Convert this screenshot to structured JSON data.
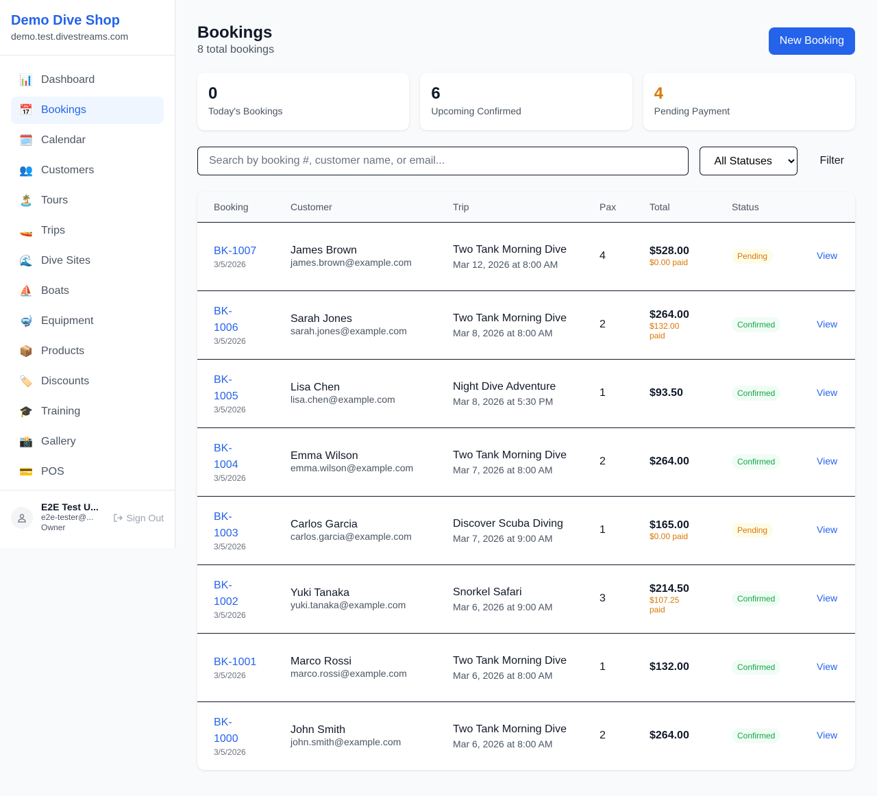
{
  "sidebar": {
    "shop_name": "Demo Dive Shop",
    "domain": "demo.test.divestreams.com",
    "items": [
      {
        "label": "Dashboard",
        "icon": "📊",
        "name": "bar-chart-icon"
      },
      {
        "label": "Bookings",
        "icon": "📅",
        "name": "calendar-icon",
        "active": true
      },
      {
        "label": "Calendar",
        "icon": "🗓️",
        "name": "spiral-calendar-icon"
      },
      {
        "label": "Customers",
        "icon": "👥",
        "name": "users-icon"
      },
      {
        "label": "Tours",
        "icon": "🏝️",
        "name": "island-icon"
      },
      {
        "label": "Trips",
        "icon": "🚤",
        "name": "boat-icon"
      },
      {
        "label": "Dive Sites",
        "icon": "🌊",
        "name": "wave-icon"
      },
      {
        "label": "Boats",
        "icon": "⛵",
        "name": "sailboat-icon"
      },
      {
        "label": "Equipment",
        "icon": "🤿",
        "name": "diving-mask-icon"
      },
      {
        "label": "Products",
        "icon": "📦",
        "name": "package-icon"
      },
      {
        "label": "Discounts",
        "icon": "🏷️",
        "name": "tag-icon"
      },
      {
        "label": "Training",
        "icon": "🎓",
        "name": "graduation-cap-icon"
      },
      {
        "label": "Gallery",
        "icon": "📸",
        "name": "camera-icon"
      },
      {
        "label": "POS",
        "icon": "💳",
        "name": "credit-card-icon"
      }
    ],
    "user": {
      "name": "E2E Test U...",
      "email": "e2e-tester@...",
      "role": "Owner",
      "sign_out": "Sign Out"
    }
  },
  "header": {
    "title": "Bookings",
    "subtitle": "8 total bookings",
    "new_booking": "New Booking"
  },
  "stats": [
    {
      "value": "0",
      "label": "Today's Bookings",
      "color": "#111827"
    },
    {
      "value": "6",
      "label": "Upcoming Confirmed",
      "color": "#111827"
    },
    {
      "value": "4",
      "label": "Pending Payment",
      "color": "#d97706"
    }
  ],
  "filters": {
    "search_placeholder": "Search by booking #, customer name, or email...",
    "status_selected": "All Statuses",
    "filter_label": "Filter"
  },
  "table": {
    "columns": [
      "Booking",
      "Customer",
      "Trip",
      "Pax",
      "Total",
      "Status",
      ""
    ],
    "rows": [
      {
        "id": "BK-1007",
        "date": "3/5/2026",
        "customer": "James Brown",
        "email": "james.brown@example.com",
        "trip": "Two Tank Morning Dive",
        "trip_date": "Mar 12, 2026 at 8:00 AM",
        "pax": "4",
        "total": "$528.00",
        "paid": "$0.00 paid",
        "status": "Pending",
        "action": "View"
      },
      {
        "id": "BK-1006",
        "date": "3/5/2026",
        "customer": "Sarah Jones",
        "email": "sarah.jones@example.com",
        "trip": "Two Tank Morning Dive",
        "trip_date": "Mar 8, 2026 at 8:00 AM",
        "pax": "2",
        "total": "$264.00",
        "paid": "$132.00 paid",
        "status": "Confirmed",
        "action": "View"
      },
      {
        "id": "BK-1005",
        "date": "3/5/2026",
        "customer": "Lisa Chen",
        "email": "lisa.chen@example.com",
        "trip": "Night Dive Adventure",
        "trip_date": "Mar 8, 2026 at 5:30 PM",
        "pax": "1",
        "total": "$93.50",
        "paid": "",
        "status": "Confirmed",
        "action": "View"
      },
      {
        "id": "BK-1004",
        "date": "3/5/2026",
        "customer": "Emma Wilson",
        "email": "emma.wilson@example.com",
        "trip": "Two Tank Morning Dive",
        "trip_date": "Mar 7, 2026 at 8:00 AM",
        "pax": "2",
        "total": "$264.00",
        "paid": "",
        "status": "Confirmed",
        "action": "View"
      },
      {
        "id": "BK-1003",
        "date": "3/5/2026",
        "customer": "Carlos Garcia",
        "email": "carlos.garcia@example.com",
        "trip": "Discover Scuba Diving",
        "trip_date": "Mar 7, 2026 at 9:00 AM",
        "pax": "1",
        "total": "$165.00",
        "paid": "$0.00 paid",
        "status": "Pending",
        "action": "View"
      },
      {
        "id": "BK-1002",
        "date": "3/5/2026",
        "customer": "Yuki Tanaka",
        "email": "yuki.tanaka@example.com",
        "trip": "Snorkel Safari",
        "trip_date": "Mar 6, 2026 at 9:00 AM",
        "pax": "3",
        "total": "$214.50",
        "paid": "$107.25 paid",
        "status": "Confirmed",
        "action": "View"
      },
      {
        "id": "BK-1001",
        "date": "3/5/2026",
        "customer": "Marco Rossi",
        "email": "marco.rossi@example.com",
        "trip": "Two Tank Morning Dive",
        "trip_date": "Mar 6, 2026 at 8:00 AM",
        "pax": "1",
        "total": "$132.00",
        "paid": "",
        "status": "Confirmed",
        "action": "View"
      },
      {
        "id": "BK-1000",
        "date": "3/5/2026",
        "customer": "John Smith",
        "email": "john.smith@example.com",
        "trip": "Two Tank Morning Dive",
        "trip_date": "Mar 6, 2026 at 8:00 AM",
        "pax": "2",
        "total": "$264.00",
        "paid": "",
        "status": "Confirmed",
        "action": "View"
      }
    ]
  }
}
